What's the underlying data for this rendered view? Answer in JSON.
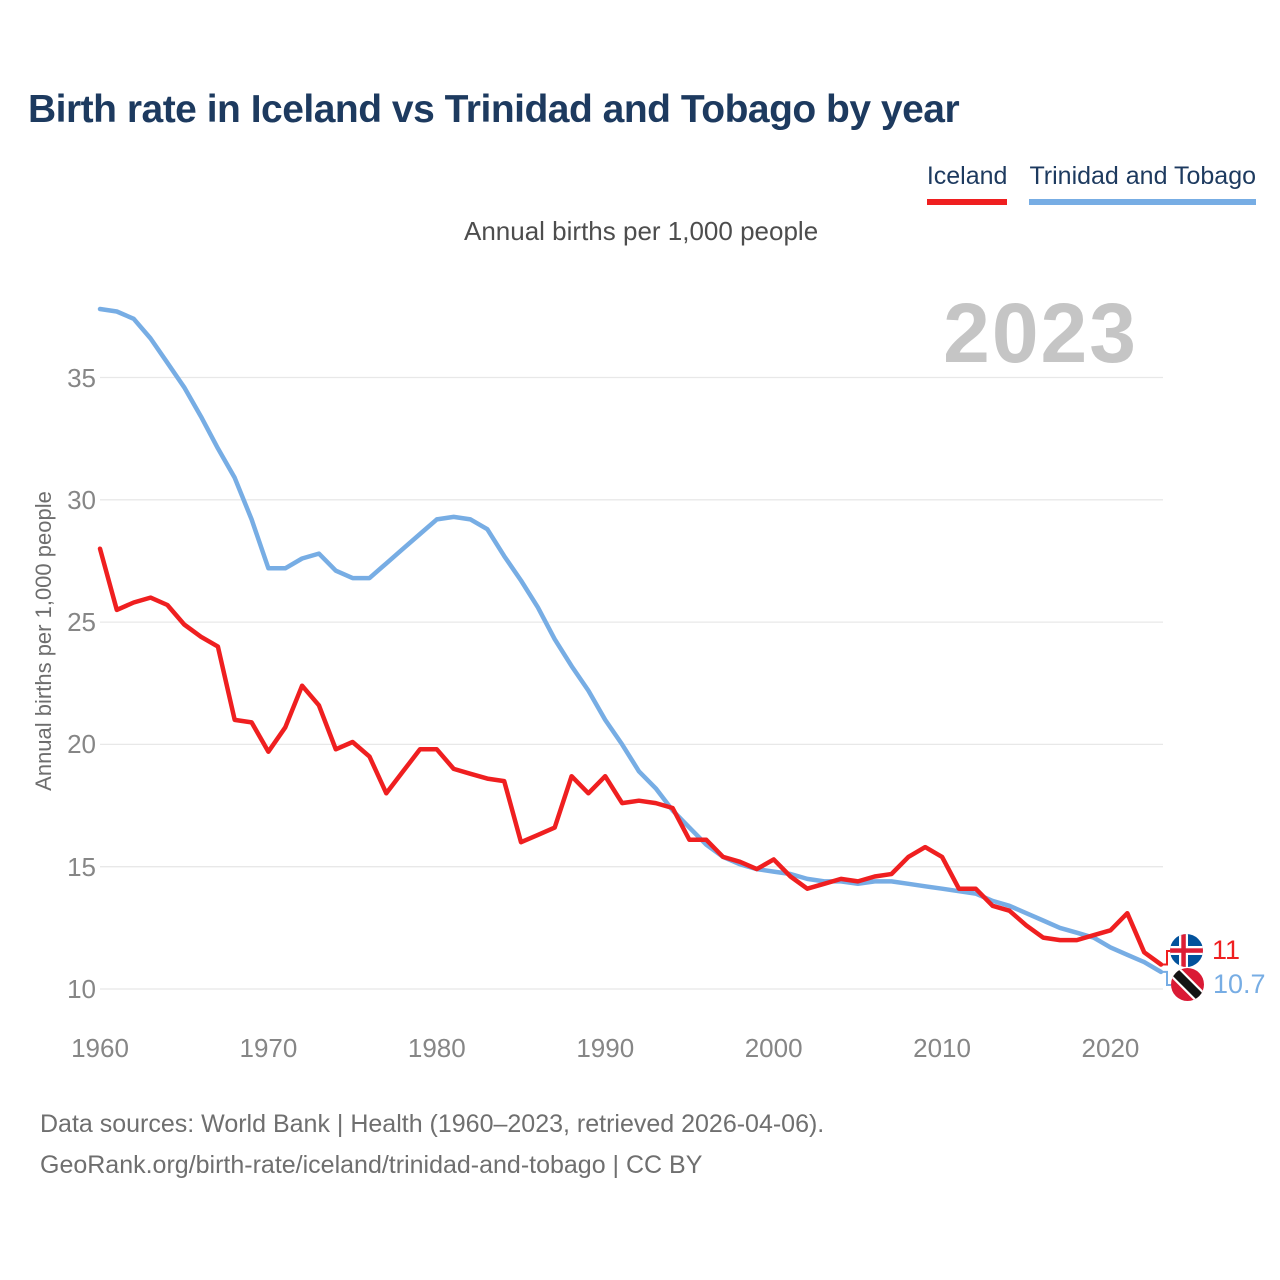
{
  "title": "Birth rate in Iceland vs Trinidad and Tobago by year",
  "subtitle": "Annual births per 1,000 people",
  "watermark": "2023",
  "y_axis_title": "Annual births per 1,000 people",
  "legend": {
    "items": [
      {
        "label": "Iceland",
        "color": "#ef1f20"
      },
      {
        "label": "Trinidad and Tobago",
        "color": "#77ade4"
      }
    ]
  },
  "end_labels": [
    {
      "series": "Iceland",
      "value_label": "11",
      "icon": "iceland-flag-icon",
      "color": "#ef1f20"
    },
    {
      "series": "Trinidad and Tobago",
      "value_label": "10.7",
      "icon": "trinidad-tobago-flag-icon",
      "color": "#77ade4"
    }
  ],
  "footer": {
    "line1": "Data sources: World Bank | Health (1960–2023, retrieved 2026-04-06).",
    "line2": "GeoRank.org/birth-rate/iceland/trinidad-and-tobago | CC BY"
  },
  "colors": {
    "iceland": "#ef1f20",
    "trinidad_and_tobago": "#77ade4",
    "title_navy": "#1d3a5f",
    "tick_gray": "#868686",
    "gridline": "#e8e8e8",
    "watermark_gray": "#c5c5c5"
  },
  "chart_data": {
    "type": "line",
    "title": "Birth rate in Iceland vs Trinidad and Tobago by year",
    "xlabel": "",
    "ylabel": "Annual births per 1,000 people",
    "grid": "horizontal",
    "legend_position": "top-right",
    "xlim": [
      1960,
      2023
    ],
    "ylim": [
      10,
      38
    ],
    "xticks": [
      1960,
      1970,
      1980,
      1990,
      2000,
      2010,
      2020
    ],
    "yticks": [
      10,
      15,
      20,
      25,
      30,
      35
    ],
    "x": [
      1960,
      1961,
      1962,
      1963,
      1964,
      1965,
      1966,
      1967,
      1968,
      1969,
      1970,
      1971,
      1972,
      1973,
      1974,
      1975,
      1976,
      1977,
      1978,
      1979,
      1980,
      1981,
      1982,
      1983,
      1984,
      1985,
      1986,
      1987,
      1988,
      1989,
      1990,
      1991,
      1992,
      1993,
      1994,
      1995,
      1996,
      1997,
      1998,
      1999,
      2000,
      2001,
      2002,
      2003,
      2004,
      2005,
      2006,
      2007,
      2008,
      2009,
      2010,
      2011,
      2012,
      2013,
      2014,
      2015,
      2016,
      2017,
      2018,
      2019,
      2020,
      2021,
      2022,
      2023
    ],
    "series": [
      {
        "name": "Iceland",
        "color": "#ef1f20",
        "final_value_label": "11",
        "values": [
          28.0,
          25.5,
          25.8,
          26.0,
          25.7,
          24.9,
          24.4,
          24.0,
          21.0,
          20.9,
          19.7,
          20.7,
          22.4,
          21.6,
          19.8,
          20.1,
          19.5,
          18.0,
          18.9,
          19.8,
          19.8,
          19.0,
          18.8,
          18.6,
          18.5,
          16.0,
          16.3,
          16.6,
          18.7,
          18.0,
          18.7,
          17.6,
          17.7,
          17.6,
          17.4,
          16.1,
          16.1,
          15.4,
          15.2,
          14.9,
          15.3,
          14.6,
          14.1,
          14.3,
          14.5,
          14.4,
          14.6,
          14.7,
          15.4,
          15.8,
          15.4,
          14.1,
          14.1,
          13.4,
          13.2,
          12.6,
          12.1,
          12.0,
          12.0,
          12.2,
          12.4,
          13.1,
          11.5,
          11.0
        ]
      },
      {
        "name": "Trinidad and Tobago",
        "color": "#77ade4",
        "final_value_label": "10.7",
        "values": [
          37.8,
          37.7,
          37.4,
          36.6,
          35.6,
          34.6,
          33.4,
          32.1,
          30.9,
          29.2,
          27.2,
          27.2,
          27.6,
          27.8,
          27.1,
          26.8,
          26.8,
          27.4,
          28.0,
          28.6,
          29.2,
          29.3,
          29.2,
          28.8,
          27.7,
          26.7,
          25.6,
          24.3,
          23.2,
          22.2,
          21.0,
          20.0,
          18.9,
          18.2,
          17.3,
          16.6,
          15.9,
          15.4,
          15.1,
          14.9,
          14.8,
          14.7,
          14.5,
          14.4,
          14.4,
          14.3,
          14.4,
          14.4,
          14.3,
          14.2,
          14.1,
          14.0,
          13.9,
          13.6,
          13.4,
          13.1,
          12.8,
          12.5,
          12.3,
          12.1,
          11.7,
          11.4,
          11.1,
          10.7
        ]
      }
    ]
  }
}
